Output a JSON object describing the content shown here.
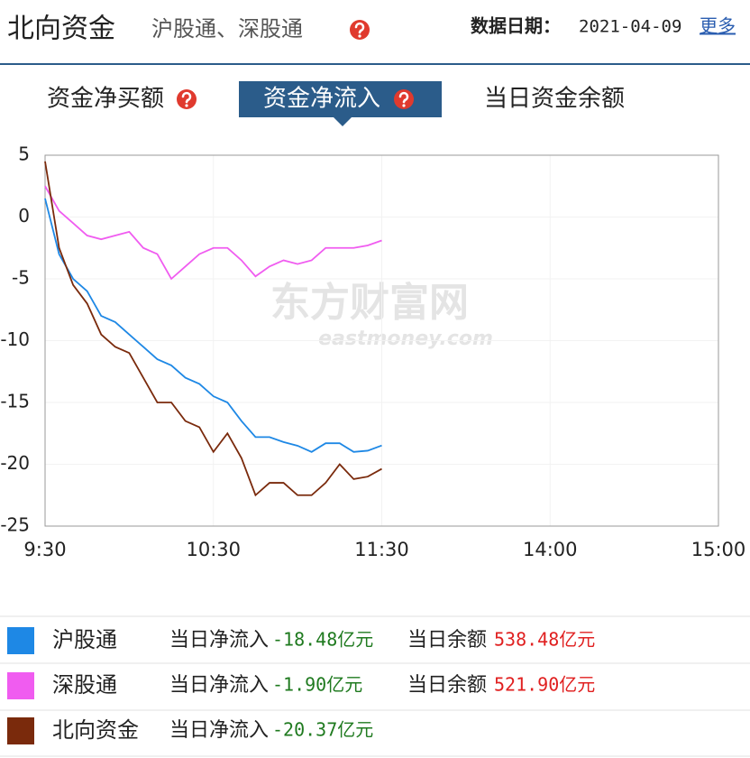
{
  "header": {
    "title": "北向资金",
    "subtitle": "沪股通、深股通",
    "date_label": "数据日期：",
    "date": "2021-04-09",
    "more": "更多"
  },
  "tabs": [
    "资金净买额",
    "资金净流入",
    "当日资金余额"
  ],
  "watermark": {
    "cn": "东方财富网",
    "en": "eastmoney.com"
  },
  "chart_data": {
    "type": "line",
    "x": [
      0,
      5,
      10,
      15,
      20,
      25,
      30,
      35,
      40,
      45,
      50,
      55,
      60,
      65,
      70,
      75,
      80,
      85,
      90,
      95,
      100,
      105,
      110,
      115,
      120
    ],
    "xlim": [
      0,
      240
    ],
    "xticks": [
      {
        "value": 0,
        "label": "9:30"
      },
      {
        "value": 60,
        "label": "10:30"
      },
      {
        "value": 120,
        "label": "11:30"
      },
      {
        "value": 180,
        "label": "14:00"
      },
      {
        "value": 240,
        "label": "15:00"
      }
    ],
    "ylim": [
      -25,
      5
    ],
    "yticks": [
      5,
      0,
      -5,
      -10,
      -15,
      -20,
      -25
    ],
    "grid": true,
    "series": [
      {
        "name": "沪股通",
        "color": "#1e88e5",
        "values": [
          1.5,
          -3,
          -5,
          -6,
          -8,
          -8.5,
          -9.5,
          -10.5,
          -11.5,
          -12,
          -13,
          -13.5,
          -14.5,
          -15,
          -16.5,
          -17.8,
          -17.8,
          -18.2,
          -18.5,
          -19,
          -18.3,
          -18.3,
          -19,
          -18.9,
          -18.48
        ]
      },
      {
        "name": "深股通",
        "color": "#f05cf0",
        "values": [
          2.5,
          0.5,
          -0.5,
          -1.5,
          -1.8,
          -1.5,
          -1.2,
          -2.5,
          -3,
          -5,
          -4,
          -3,
          -2.5,
          -2.5,
          -3.5,
          -4.8,
          -4,
          -3.5,
          -3.8,
          -3.5,
          -2.5,
          -2.5,
          -2.5,
          -2.3,
          -1.9
        ]
      },
      {
        "name": "北向资金",
        "color": "#7a2a0c",
        "values": [
          4.5,
          -2.5,
          -5.5,
          -7,
          -9.5,
          -10.5,
          -11,
          -13,
          -15,
          -15,
          -16.5,
          -17,
          -19,
          -17.5,
          -19.5,
          -22.5,
          -21.5,
          -21.5,
          -22.5,
          -22.5,
          -21.5,
          -20,
          -21.2,
          -21,
          -20.37
        ]
      }
    ]
  },
  "legend": [
    {
      "flow_label": "当日净流入",
      "flow": "-18.48亿元",
      "balance_label": "当日余额",
      "balance": "538.48亿元"
    },
    {
      "flow_label": "当日净流入",
      "flow": "-1.90亿元",
      "balance_label": "当日余额",
      "balance": "521.90亿元"
    },
    {
      "flow_label": "当日净流入",
      "flow": "-20.37亿元"
    }
  ]
}
